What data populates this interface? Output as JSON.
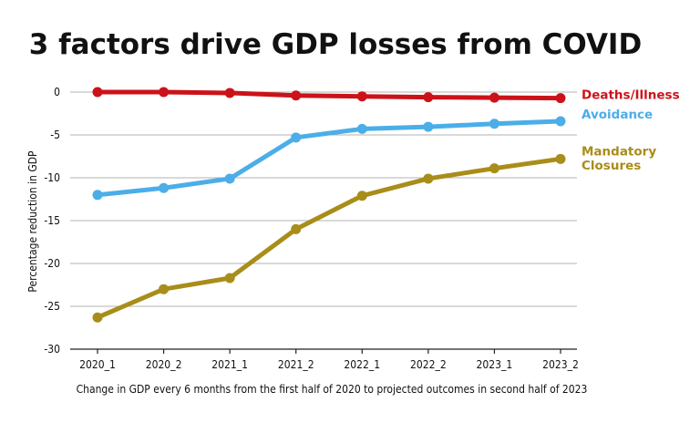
{
  "chart_data": {
    "type": "line",
    "title": "3 factors drive GDP losses from COVID",
    "xlabel": "Change in GDP every 6 months from the first half of 2020 to projected outcomes in second half of 2023",
    "ylabel": "Percentage reduction in GDP",
    "categories": [
      "2020_1",
      "2020_2",
      "2021_1",
      "2021_2",
      "2022_1",
      "2022_2",
      "2023_1",
      "2023_2"
    ],
    "ylim": [
      -30,
      0
    ],
    "yticks": [
      0,
      -5,
      -10,
      -15,
      -20,
      -25,
      -30
    ],
    "grid": true,
    "legend_placement": "right, at line ends",
    "series": [
      {
        "name": "Deaths/Illness",
        "color": "#cc1219",
        "values": [
          0,
          0,
          -0.1,
          -0.4,
          -0.5,
          -0.6,
          -0.65,
          -0.7
        ],
        "label_lines": [
          "Deaths/Illness"
        ]
      },
      {
        "name": "Avoidance",
        "color": "#4baee8",
        "values": [
          -12,
          -11.2,
          -10.1,
          -5.3,
          -4.3,
          -4.05,
          -3.7,
          -3.4
        ],
        "label_lines": [
          "Avoidance"
        ]
      },
      {
        "name": "Mandatory Closures",
        "color": "#a98d1a",
        "values": [
          -26.3,
          -23,
          -21.7,
          -16,
          -12.1,
          -10.1,
          -8.9,
          -7.8
        ],
        "label_lines": [
          "Mandatory",
          "Closures"
        ]
      }
    ]
  }
}
